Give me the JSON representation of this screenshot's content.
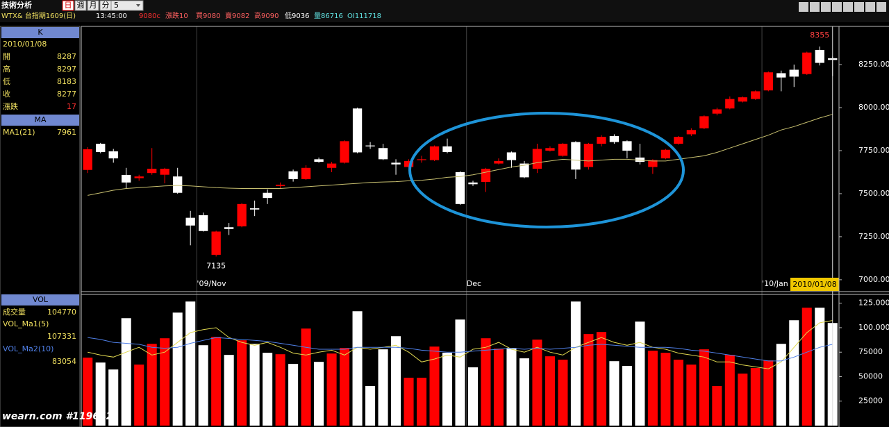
{
  "header": {
    "title": "技術分析",
    "periods": [
      "日",
      "週",
      "月",
      "分"
    ],
    "period_count": "5",
    "symbol": "WTX& 台指期1609(日)",
    "time": "13:45:00",
    "quote": [
      "9080c",
      "漲跌10",
      "買9080",
      "賣9082",
      "高9090",
      "低9036",
      "量86716",
      "OI111718"
    ]
  },
  "panel": {
    "k_title": "K",
    "date": "2010/01/08",
    "labels": [
      "開",
      "高",
      "低",
      "收",
      "漲跌"
    ],
    "change": 17,
    "ma_title": "MA",
    "vol_title": "VOL",
    "vol_label": "成交量"
  },
  "watermark": "wearn.com #119642",
  "chart_data": [
    {
      "type": "candlestick",
      "categories": [
        null,
        null,
        null,
        null,
        null,
        null,
        null,
        null,
        null,
        "'09/Nov",
        null,
        null,
        null,
        null,
        null,
        null,
        null,
        null,
        null,
        null,
        null,
        null,
        null,
        null,
        null,
        null,
        null,
        null,
        null,
        null,
        "Dec",
        null,
        null,
        null,
        null,
        null,
        null,
        null,
        null,
        null,
        null,
        null,
        null,
        null,
        null,
        null,
        null,
        null,
        null,
        null,
        null,
        null,
        null,
        "'10/Jan",
        null,
        null,
        null,
        null,
        null
      ],
      "open": [
        7638,
        7790,
        7746,
        7609,
        7590,
        7620,
        7610,
        7600,
        7360,
        7375,
        7145,
        7305,
        7310,
        7415,
        7505,
        7545,
        7630,
        7585,
        7700,
        7650,
        7680,
        7995,
        7780,
        7765,
        7680,
        7655,
        7695,
        7695,
        7775,
        7625,
        7565,
        7568,
        7675,
        7740,
        7675,
        7645,
        7750,
        7720,
        7800,
        7655,
        7790,
        7835,
        7805,
        7710,
        7655,
        7705,
        7790,
        7845,
        7880,
        7965,
        7995,
        8035,
        8050,
        8100,
        8200,
        8220,
        8195,
        8335,
        8287
      ],
      "high": [
        7770,
        7795,
        7760,
        7650,
        7610,
        7765,
        7650,
        7650,
        7400,
        7390,
        7285,
        7330,
        7445,
        7460,
        7525,
        7565,
        7640,
        7665,
        7710,
        7685,
        7810,
        8000,
        7800,
        7790,
        7700,
        7700,
        7720,
        7780,
        7820,
        7630,
        7575,
        7650,
        7705,
        7745,
        7690,
        7790,
        7775,
        7795,
        7805,
        7795,
        7840,
        7845,
        7810,
        7790,
        7700,
        7760,
        7835,
        7880,
        7955,
        8000,
        8065,
        8065,
        8100,
        8210,
        8215,
        8250,
        8325,
        8355,
        8297
      ],
      "low": [
        7620,
        7735,
        7680,
        7530,
        7575,
        7610,
        7560,
        7500,
        7200,
        7280,
        7135,
        7260,
        7305,
        7370,
        7440,
        7530,
        7570,
        7580,
        7680,
        7625,
        7675,
        7735,
        7760,
        7695,
        7610,
        7645,
        7680,
        7690,
        7735,
        7435,
        7545,
        7510,
        7670,
        7650,
        7590,
        7620,
        7745,
        7715,
        7585,
        7640,
        7775,
        7790,
        7705,
        7670,
        7615,
        7700,
        7785,
        7835,
        7875,
        7955,
        7990,
        8030,
        8045,
        8095,
        8095,
        8120,
        8190,
        8245,
        8183
      ],
      "close": [
        7758,
        7742,
        7705,
        7565,
        7600,
        7645,
        7645,
        7505,
        7315,
        7283,
        7280,
        7295,
        7440,
        7408,
        7475,
        7552,
        7585,
        7650,
        7685,
        7675,
        7805,
        7740,
        7775,
        7700,
        7670,
        7690,
        7700,
        7775,
        7742,
        7440,
        7555,
        7645,
        7690,
        7695,
        7595,
        7760,
        7765,
        7790,
        7640,
        7790,
        7830,
        7800,
        7750,
        7685,
        7695,
        7755,
        7830,
        7870,
        7950,
        7990,
        8050,
        8060,
        8095,
        8205,
        8175,
        8180,
        8320,
        8260,
        8277
      ],
      "up_color": "#ff0000",
      "down_color": "#ffffff",
      "ylim": [
        6931,
        8472
      ],
      "yticks": [
        {
          "value": 7000,
          "label": "7000.000"
        },
        {
          "value": 7250,
          "label": "7250.000"
        },
        {
          "value": 7500,
          "label": "7500.000"
        },
        {
          "value": 7750,
          "label": "7750.000"
        },
        {
          "value": 8000,
          "label": "8000.000"
        },
        {
          "value": 8250,
          "label": "8250.000"
        }
      ],
      "lines": [
        {
          "name": "MA1(21)",
          "color": "#c8c070",
          "values": [
            7490,
            7505,
            7520,
            7530,
            7535,
            7540,
            7545,
            7548,
            7545,
            7540,
            7535,
            7532,
            7530,
            7530,
            7530,
            7530,
            7535,
            7540,
            7545,
            7550,
            7555,
            7560,
            7565,
            7568,
            7570,
            7575,
            7578,
            7585,
            7595,
            7600,
            7610,
            7625,
            7640,
            7655,
            7665,
            7680,
            7690,
            7700,
            7695,
            7690,
            7695,
            7700,
            7700,
            7695,
            7690,
            7690,
            7700,
            7710,
            7720,
            7740,
            7765,
            7790,
            7815,
            7840,
            7870,
            7890,
            7915,
            7940,
            7961
          ]
        }
      ]
    },
    {
      "type": "bar",
      "values": [
        69400,
        64400,
        57300,
        109700,
        62300,
        83500,
        89200,
        115400,
        126700,
        82100,
        90600,
        72200,
        87100,
        83500,
        74400,
        72900,
        63000,
        99100,
        65100,
        73600,
        79300,
        116800,
        40400,
        77900,
        91300,
        48900,
        48900,
        80700,
        74400,
        108300,
        59500,
        89200,
        78600,
        79300,
        68700,
        87800,
        70800,
        67300,
        126700,
        93500,
        95600,
        65800,
        60900,
        106200,
        76500,
        74400,
        67300,
        62300,
        77900,
        40400,
        72200,
        53100,
        58800,
        66600,
        83500,
        107600,
        120400,
        120400,
        104770
      ],
      "up_color": "#ff0000",
      "down_color": "#ffffff",
      "ylim": [
        0,
        134000
      ],
      "yticks": [
        25000,
        50000,
        75000,
        {
          "value": 100000,
          "label": "100.000K"
        },
        {
          "value": 125000,
          "label": "125.000K"
        }
      ],
      "lines": [
        {
          "name": "VOL_Ma1(5)",
          "color": "#e0d850",
          "values": [
            75000,
            72000,
            70000,
            75000,
            80000,
            72000,
            75000,
            85000,
            95000,
            98000,
            100000,
            90000,
            85000,
            82000,
            85000,
            80000,
            74000,
            72000,
            75000,
            77000,
            72000,
            80000,
            78000,
            80000,
            82000,
            75000,
            65000,
            68000,
            72000,
            70000,
            78000,
            80000,
            85000,
            78000,
            75000,
            80000,
            75000,
            72000,
            80000,
            85000,
            90000,
            85000,
            82000,
            85000,
            80000,
            78000,
            74000,
            72000,
            70000,
            65000,
            65000,
            62000,
            60000,
            58000,
            65000,
            80000,
            95000,
            105000,
            107331
          ]
        },
        {
          "name": "VOL_Ma2(10)",
          "color": "#5080e8",
          "values": [
            90000,
            88000,
            85000,
            84000,
            83000,
            80000,
            79000,
            80000,
            84000,
            87000,
            90000,
            89000,
            88000,
            87000,
            86000,
            84000,
            82000,
            80000,
            78000,
            78000,
            78000,
            80000,
            80000,
            80000,
            80000,
            79000,
            77000,
            76000,
            75000,
            75000,
            76000,
            77000,
            78000,
            79000,
            78000,
            79000,
            78000,
            79000,
            80000,
            82000,
            83000,
            82000,
            81000,
            80000,
            80000,
            80000,
            79000,
            77000,
            76000,
            74000,
            72000,
            70000,
            68000,
            66000,
            66000,
            70000,
            75000,
            80000,
            83054
          ]
        }
      ]
    }
  ]
}
